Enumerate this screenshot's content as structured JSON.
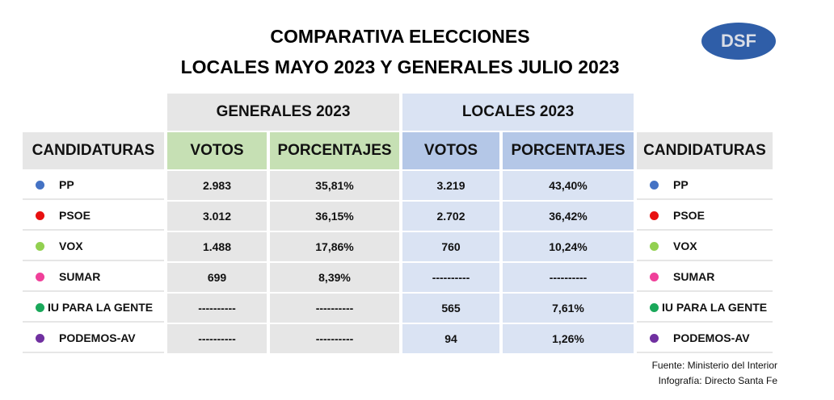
{
  "title": {
    "line1": "COMPARATIVA ELECCIONES",
    "line2": "LOCALES MAYO 2023 Y GENERALES JULIO 2023"
  },
  "logo": "DSF",
  "headers": {
    "generales": "GENERALES 2023",
    "locales": "LOCALES 2023",
    "candidaturas": "CANDIDATURAS",
    "votos": "VOTOS",
    "porcentajes": "PORCENTAJES"
  },
  "rows": [
    {
      "name": "PP",
      "color": "#4472c4",
      "g_votos": "2.983",
      "g_pct": "35,81%",
      "l_votos": "3.219",
      "l_pct": "43,40%"
    },
    {
      "name": "PSOE",
      "color": "#e81010",
      "g_votos": "3.012",
      "g_pct": "36,15%",
      "l_votos": "2.702",
      "l_pct": "36,42%"
    },
    {
      "name": "VOX",
      "color": "#92d050",
      "g_votos": "1.488",
      "g_pct": "17,86%",
      "l_votos": "760",
      "l_pct": "10,24%"
    },
    {
      "name": "SUMAR",
      "color": "#f0409a",
      "g_votos": "699",
      "g_pct": "8,39%",
      "l_votos": "----------",
      "l_pct": "----------"
    },
    {
      "name": "IU PARA LA GENTE",
      "color": "#1aa85a",
      "g_votos": "----------",
      "g_pct": "----------",
      "l_votos": "565",
      "l_pct": "7,61%"
    },
    {
      "name": "PODEMOS-AV",
      "color": "#7030a0",
      "g_votos": "----------",
      "g_pct": "----------",
      "l_votos": "94",
      "l_pct": "1,26%"
    }
  ],
  "source": {
    "line1": "Fuente: Ministerio del Interior",
    "line2": "Infografía: Directo Santa Fe"
  }
}
